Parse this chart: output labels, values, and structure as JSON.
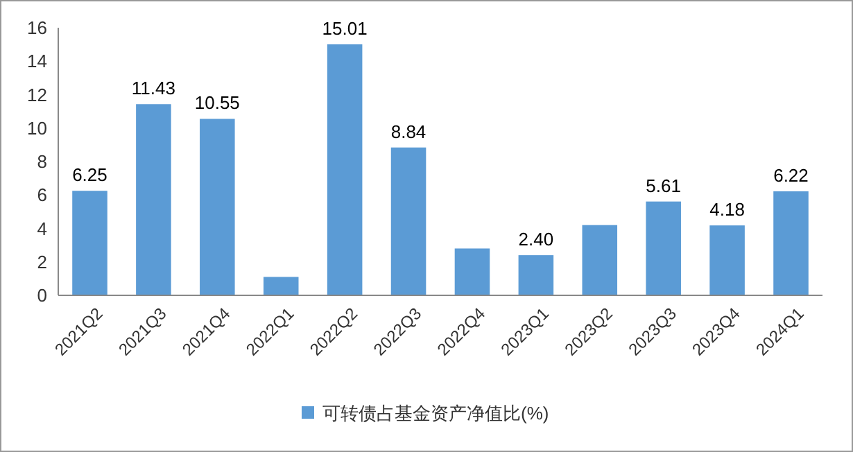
{
  "chart_data": {
    "type": "bar",
    "categories": [
      "2021Q2",
      "2021Q3",
      "2021Q4",
      "2022Q1",
      "2022Q2",
      "2022Q3",
      "2022Q4",
      "2023Q1",
      "2023Q2",
      "2023Q3",
      "2023Q4",
      "2024Q1"
    ],
    "series": [
      {
        "name": "可转债占基金资产净值比(%)",
        "color": "#5b9bd5",
        "values": [
          6.25,
          11.43,
          10.55,
          1.1,
          15.01,
          8.84,
          2.8,
          2.4,
          4.2,
          5.61,
          4.18,
          6.22
        ],
        "value_labels": [
          "6.25",
          "11.43",
          "10.55",
          null,
          "15.01",
          "8.84",
          null,
          "2.40",
          null,
          "5.61",
          "4.18",
          "6.22"
        ]
      }
    ],
    "ylim": [
      0,
      16
    ],
    "yticks": [
      0,
      2,
      4,
      6,
      8,
      10,
      12,
      14,
      16
    ],
    "legend": "bottom",
    "grid": false
  }
}
